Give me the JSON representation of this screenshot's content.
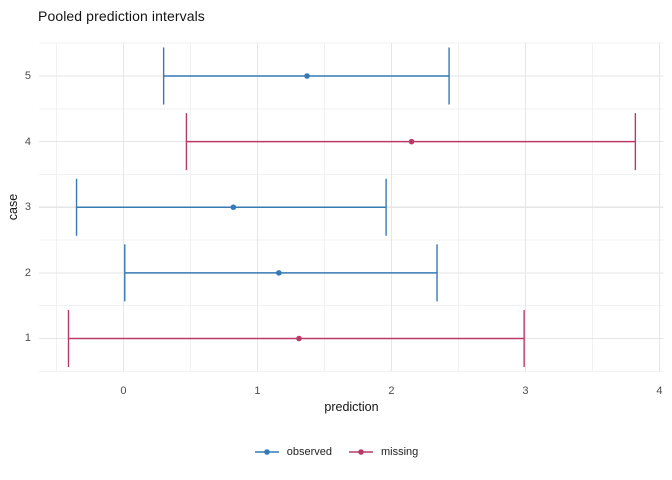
{
  "title": "Pooled prediction intervals",
  "x_axis": {
    "label": "prediction",
    "tick_labels": [
      "0",
      "1",
      "2",
      "3",
      "4"
    ]
  },
  "y_axis": {
    "label": "case",
    "tick_labels": [
      "1",
      "2",
      "3",
      "4",
      "5"
    ]
  },
  "legend": {
    "position": "bottom",
    "items": [
      {
        "label": "observed",
        "color": "#3579B5"
      },
      {
        "label": "missing",
        "color": "#BA3A66"
      }
    ]
  },
  "colors": {
    "background": "#ffffff",
    "grid_major": "#E6E6E6",
    "grid_minor": "#F1F1F1",
    "tick_text": "#4d4d4d",
    "title_text": "#141414"
  },
  "chart_data": {
    "type": "scatter",
    "subtype": "horizontal-errorbar",
    "title": "Pooled prediction intervals",
    "xlabel": "prediction",
    "ylabel": "case",
    "xlim": [
      -0.63,
      4.03
    ],
    "ylim": [
      0.5,
      5.5
    ],
    "x_ticks": [
      0,
      1,
      2,
      3,
      4
    ],
    "y_ticks": [
      1,
      2,
      3,
      4,
      5
    ],
    "grid": "major+minor",
    "legend_position": "bottom",
    "series": [
      {
        "name": "observed",
        "color": "#3579B5",
        "points": [
          {
            "case": 5,
            "estimate": 1.37,
            "lower": 0.3,
            "upper": 2.43
          },
          {
            "case": 3,
            "estimate": 0.82,
            "lower": -0.35,
            "upper": 1.96
          },
          {
            "case": 2,
            "estimate": 1.16,
            "lower": 0.01,
            "upper": 2.34
          }
        ]
      },
      {
        "name": "missing",
        "color": "#BA3A66",
        "points": [
          {
            "case": 4,
            "estimate": 2.15,
            "lower": 0.47,
            "upper": 3.82
          },
          {
            "case": 1,
            "estimate": 1.31,
            "lower": -0.41,
            "upper": 2.99
          }
        ]
      }
    ]
  }
}
